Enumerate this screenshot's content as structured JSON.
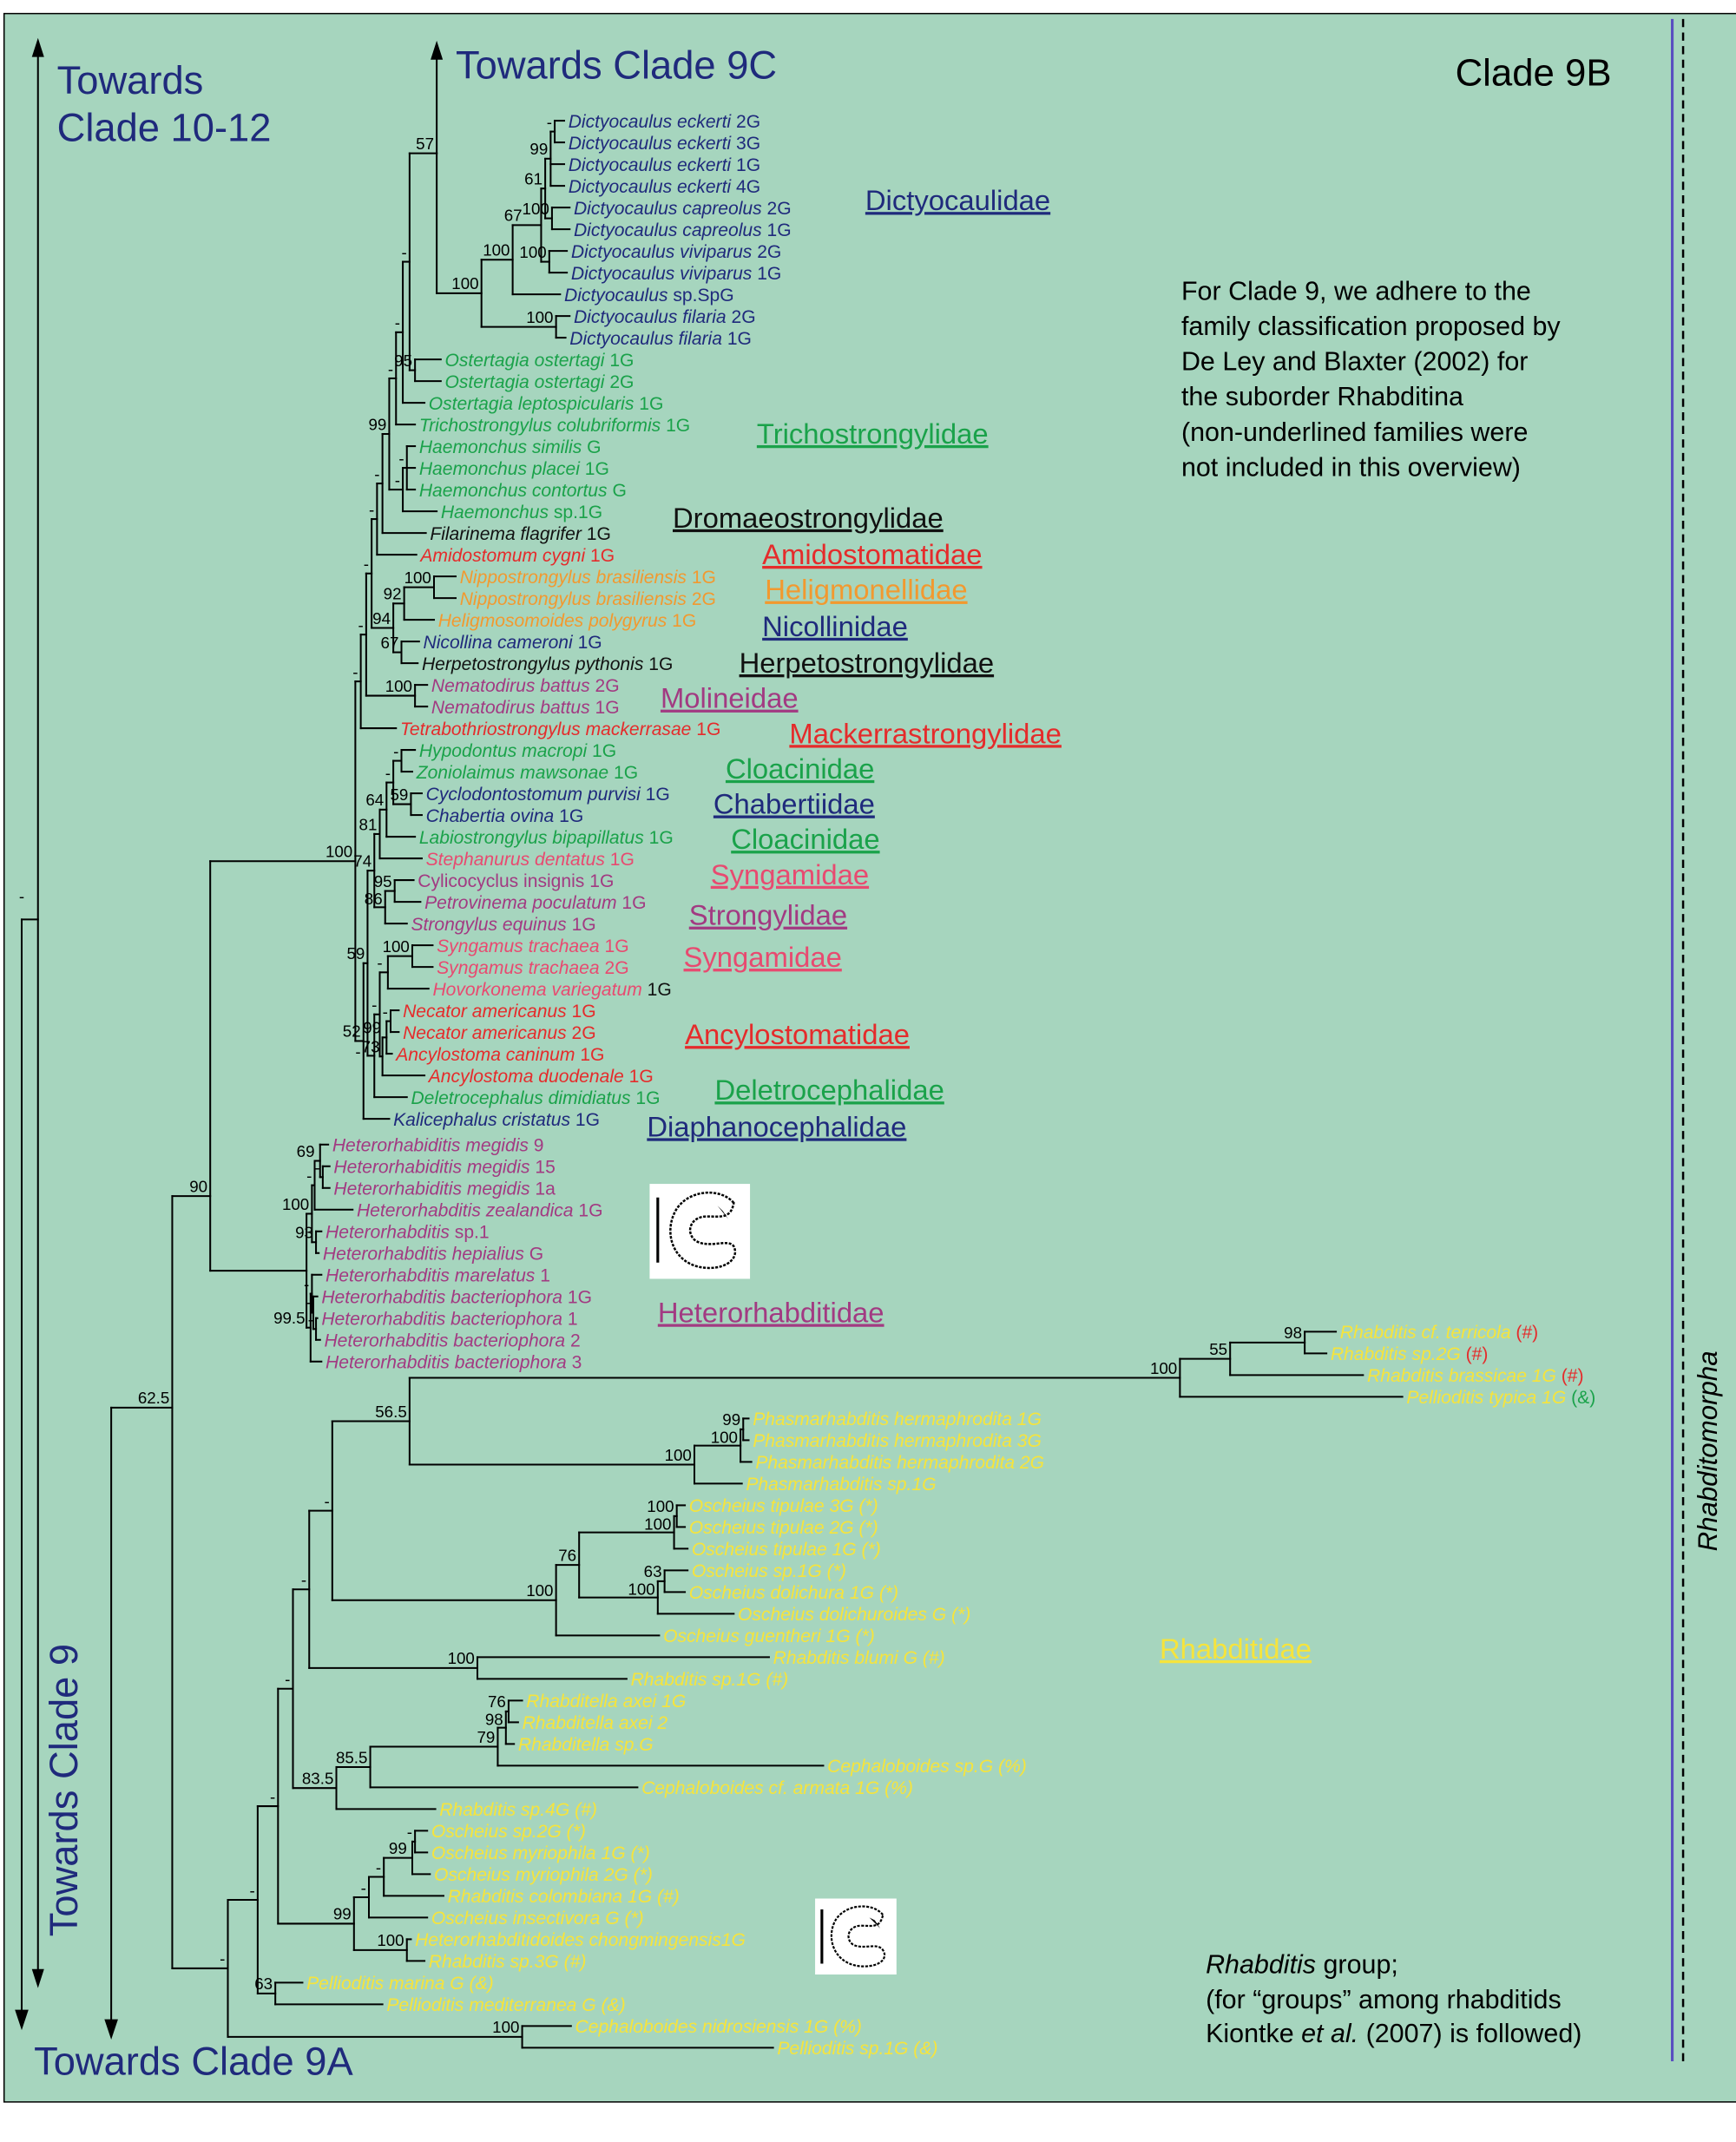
{
  "header": {
    "clade_label": "Clade 9B"
  },
  "arrows": {
    "clade_10_12_line1": "Towards",
    "clade_10_12_line2": "Clade 10-12",
    "clade_9c": "Towards Clade 9C",
    "clade_9": "Towards Clade 9",
    "clade_9a": "Towards Clade 9A"
  },
  "notes": {
    "classification": [
      "For Clade 9, we adhere to the",
      "family classification proposed by",
      "De Ley and Blaxter (2002) for",
      "the suborder Rhabditina",
      "(non-underlined families were",
      "not included in this overview)"
    ],
    "rhabditis_group": {
      "line1_italic": "Rhabditis",
      "line1_rest": " group;",
      "line2": "(for “groups” among rhabditids",
      "line3_a": "Kiontke ",
      "line3_italic": "et al.",
      "line3_b": " (2007) is followed)"
    }
  },
  "side_label": "Rhabditomorpha",
  "colors": {
    "background": "#a6d5be",
    "navy": "#1f2a7c",
    "green": "#1aa24a",
    "red": "#e52b2b",
    "orange": "#f2992f",
    "purple": "#a23a82",
    "pink": "#e84a70",
    "yellow": "#f6e43c",
    "black": "#111111",
    "rhabditomorpha_line": "#5a4fc0"
  },
  "families": [
    {
      "name": "Dictyocaulidae",
      "c": "navy"
    },
    {
      "name": "Trichostrongylidae",
      "c": "green"
    },
    {
      "name": "Dromaeostrongylidae",
      "c": "black"
    },
    {
      "name": "Amidostomatidae",
      "c": "red"
    },
    {
      "name": "Heligmonellidae",
      "c": "orange"
    },
    {
      "name": "Nicollinidae",
      "c": "navy"
    },
    {
      "name": "Herpetostrongylidae",
      "c": "black"
    },
    {
      "name": "Molineidae",
      "c": "purple"
    },
    {
      "name": "Mackerrastrongylidae",
      "c": "red"
    },
    {
      "name": "Cloacinidae",
      "c": "green"
    },
    {
      "name": "Chabertiidae",
      "c": "navy"
    },
    {
      "name": "Cloacinidae",
      "c": "green"
    },
    {
      "name": "Syngamidae",
      "c": "pink"
    },
    {
      "name": "Strongylidae",
      "c": "purple"
    },
    {
      "name": "Syngamidae",
      "c": "pink"
    },
    {
      "name": "Ancylostomatidae",
      "c": "red"
    },
    {
      "name": "Deletrocephalidae",
      "c": "green"
    },
    {
      "name": "Diaphanocephalidae",
      "c": "navy"
    },
    {
      "name": "Heterorhabditidae",
      "c": "purple"
    },
    {
      "name": "Rhabditidae",
      "c": "yellow"
    }
  ],
  "root_support": "-",
  "taxa": [
    {
      "n": "Dictyocaulus eckerti",
      "s": "2G",
      "c": "navy"
    },
    {
      "n": "Dictyocaulus eckerti",
      "s": "3G",
      "c": "navy"
    },
    {
      "n": "Dictyocaulus eckerti",
      "s": "1G",
      "c": "navy"
    },
    {
      "n": "Dictyocaulus eckerti",
      "s": "4G",
      "c": "navy"
    },
    {
      "n": "Dictyocaulus capreolus",
      "s": "2G",
      "c": "navy"
    },
    {
      "n": "Dictyocaulus capreolus",
      "s": "1G",
      "c": "navy"
    },
    {
      "n": "Dictyocaulus viviparus",
      "s": "2G",
      "c": "navy"
    },
    {
      "n": "Dictyocaulus viviparus",
      "s": "1G",
      "c": "navy"
    },
    {
      "n": "Dictyocaulus",
      "s": "sp.SpG",
      "c": "navy"
    },
    {
      "n": "Dictyocaulus filaria",
      "s": "2G",
      "c": "navy"
    },
    {
      "n": "Dictyocaulus filaria",
      "s": "1G",
      "c": "navy"
    },
    {
      "n": "Ostertagia ostertagi",
      "s": "1G",
      "c": "green"
    },
    {
      "n": "Ostertagia ostertagi",
      "s": "2G",
      "c": "green"
    },
    {
      "n": "Ostertagia leptospicularis",
      "s": "1G",
      "c": "green"
    },
    {
      "n": "Trichostrongylus colubriformis",
      "s": "1G",
      "c": "green"
    },
    {
      "n": "Haemonchus similis",
      "s": "G",
      "c": "green"
    },
    {
      "n": "Haemonchus placei",
      "s": "1G",
      "c": "green"
    },
    {
      "n": "Haemonchus contortus",
      "s": "G",
      "c": "green"
    },
    {
      "n": "Haemonchus",
      "s": "sp.1G",
      "c": "green"
    },
    {
      "n": "Filarinema flagrifer",
      "s": "1G",
      "c": "black"
    },
    {
      "n": "Amidostomum cygni",
      "s": "1G",
      "c": "red"
    },
    {
      "n": "Nippostrongylus brasiliensis",
      "s": "1G",
      "c": "orange"
    },
    {
      "n": "Nippostrongylus brasiliensis",
      "s": "2G",
      "c": "orange"
    },
    {
      "n": "Heligmosomoides polygyrus",
      "s": "1G",
      "c": "orange"
    },
    {
      "n": "Nicollina cameroni",
      "s": "1G",
      "c": "navy"
    },
    {
      "n": "Herpetostrongylus pythonis",
      "s": "1G",
      "c": "black"
    },
    {
      "n": "Nematodirus battus",
      "s": "2G",
      "c": "purple"
    },
    {
      "n": "Nematodirus battus",
      "s": "1G",
      "c": "purple"
    },
    {
      "n": "Tetrabothriostrongylus mackerrasae",
      "s": "1G",
      "c": "red"
    },
    {
      "n": "Hypodontus macropi",
      "s": "1G",
      "c": "green"
    },
    {
      "n": "Zoniolaimus mawsonae",
      "s": "1G",
      "c": "green"
    },
    {
      "n": "Cyclodontostomum purvisi",
      "s": "1G",
      "c": "navy"
    },
    {
      "n": "Chabertia ovina",
      "s": "1G",
      "c": "navy"
    },
    {
      "n": "Labiostrongylus bipapillatus",
      "s": "1G",
      "c": "green"
    },
    {
      "n": "Stephanurus dentatus",
      "s": "1G",
      "c": "pink"
    },
    {
      "n": "Cylicocyclus insignis",
      "s": "1G",
      "c": "purple",
      "it": false
    },
    {
      "n": "Petrovinema poculatum",
      "s": "1G",
      "c": "purple"
    },
    {
      "n": "Strongylus equinus",
      "s": "1G",
      "c": "purple"
    },
    {
      "n": "Syngamus trachaea",
      "s": "1G",
      "c": "pink"
    },
    {
      "n": "Syngamus trachaea",
      "s": "2G",
      "c": "pink"
    },
    {
      "n": "Hovorkonema variegatum",
      "s": "1G",
      "c": "pink",
      "sc": "black"
    },
    {
      "n": "Necator americanus",
      "s": "1G",
      "c": "red"
    },
    {
      "n": "Necator americanus",
      "s": "2G",
      "c": "red"
    },
    {
      "n": "Ancylostoma caninum",
      "s": "1G",
      "c": "red"
    },
    {
      "n": "Ancylostoma duodenale",
      "s": "1G",
      "c": "red"
    },
    {
      "n": "Deletrocephalus dimidiatus",
      "s": "1G",
      "c": "green"
    },
    {
      "n": "Kalicephalus cristatus",
      "s": "1G",
      "c": "navy"
    },
    {
      "n": "Heterorhabiditis megidis",
      "s": "9",
      "c": "purple"
    },
    {
      "n": "Heterorhabiditis megidis",
      "s": "15",
      "c": "purple"
    },
    {
      "n": "Heterorhabiditis megidis",
      "s": "1a",
      "c": "purple"
    },
    {
      "n": "Heterorhabditis zealandica",
      "s": "1G",
      "c": "purple"
    },
    {
      "n": "Heterorhabditis",
      "s": "sp.1",
      "c": "purple"
    },
    {
      "n": "Heterorhabditis hepialius",
      "s": "G",
      "c": "purple"
    },
    {
      "n": "Heterorhabditis marelatus",
      "s": "1",
      "c": "purple"
    },
    {
      "n": "Heterorhabditis bacteriophora",
      "s": "1G",
      "c": "purple"
    },
    {
      "n": "Heterorhabditis bacteriophora",
      "s": "1",
      "c": "purple"
    },
    {
      "n": "Heterorhabditis bacteriophora",
      "s": "2",
      "c": "purple"
    },
    {
      "n": "Heterorhabditis bacteriophora",
      "s": "3",
      "c": "purple"
    },
    {
      "n": "Rhabditis cf. terricola",
      "s": "",
      "c": "yellow",
      "m": "(#)",
      "mc": "red"
    },
    {
      "n": "Rhabditis sp.2G",
      "s": "",
      "c": "yellow",
      "m": "(#)",
      "mc": "red"
    },
    {
      "n": "Rhabditis brassicae 1G",
      "s": "",
      "c": "yellow",
      "m": "(#)",
      "mc": "red"
    },
    {
      "n": "Pellioditis typica 1G",
      "s": "",
      "c": "yellow",
      "m": "(&)",
      "mc": "green"
    },
    {
      "n": "Phasmarhabditis hermaphrodita 1G",
      "s": "",
      "c": "yellow"
    },
    {
      "n": "Phasmarhabditis hermaphrodita 3G",
      "s": "",
      "c": "yellow"
    },
    {
      "n": "Phasmarhabditis hermaphrodita 2G",
      "s": "",
      "c": "yellow"
    },
    {
      "n": "Phasmarhabditis sp.1G",
      "s": "",
      "c": "yellow"
    },
    {
      "n": "Oscheius tipulae 3G (*)",
      "s": "",
      "c": "yellow"
    },
    {
      "n": "Oscheius tipulae 2G (*)",
      "s": "",
      "c": "yellow"
    },
    {
      "n": "Oscheius tipulae 1G (*)",
      "s": "",
      "c": "yellow"
    },
    {
      "n": "Oscheius sp.1G (*)",
      "s": "",
      "c": "yellow"
    },
    {
      "n": "Oscheius dolichura 1G (*)",
      "s": "",
      "c": "yellow"
    },
    {
      "n": "Oscheius dolichuroides G (*)",
      "s": "",
      "c": "yellow"
    },
    {
      "n": "Oscheius guentheri 1G (*)",
      "s": "",
      "c": "yellow"
    },
    {
      "n": "Rhabditis blumi G (#)",
      "s": "",
      "c": "yellow"
    },
    {
      "n": "Rhabditis sp.1G (#)",
      "s": "",
      "c": "yellow"
    },
    {
      "n": "Rhabditella axei 1G",
      "s": "",
      "c": "yellow"
    },
    {
      "n": "Rhabditella axei 2",
      "s": "",
      "c": "yellow"
    },
    {
      "n": "Rhabditella sp.G",
      "s": "",
      "c": "yellow"
    },
    {
      "n": "Cephaloboides sp.G (%)",
      "s": "",
      "c": "yellow"
    },
    {
      "n": "Cephaloboides cf. armata 1G (%)",
      "s": "",
      "c": "yellow"
    },
    {
      "n": "Rhabditis sp.4G (#)",
      "s": "",
      "c": "yellow"
    },
    {
      "n": "Oscheius sp.2G (*)",
      "s": "",
      "c": "yellow"
    },
    {
      "n": "Oscheius myriophila 1G (*)",
      "s": "",
      "c": "yellow"
    },
    {
      "n": "Oscheius myriophila 2G (*)",
      "s": "",
      "c": "yellow"
    },
    {
      "n": "Rhabditis colombiana 1G (#)",
      "s": "",
      "c": "yellow"
    },
    {
      "n": "Oscheius insectivora G (*)",
      "s": "",
      "c": "yellow"
    },
    {
      "n": "Heterorhabditidoides chongmingensis1G",
      "s": "",
      "c": "yellow"
    },
    {
      "n": "Rhabditis sp.3G (#)",
      "s": "",
      "c": "yellow"
    },
    {
      "n": "Pellioditis marina G (&)",
      "s": "",
      "c": "yellow"
    },
    {
      "n": "Pellioditis mediterranea G (&)",
      "s": "",
      "c": "yellow"
    },
    {
      "n": "Cephaloboides nidrosiensis 1G (%)",
      "s": "",
      "c": "yellow"
    },
    {
      "n": "Pellioditis sp.1G (&)",
      "s": "",
      "c": "yellow"
    }
  ],
  "support": {
    "n62": "62.5",
    "n90": "90",
    "s100": "100",
    "d57": "57",
    "d100a": "100",
    "d100b": "100",
    "d67": "67",
    "d61": "61",
    "d99": "99",
    "dm1": "-",
    "dcap": "100",
    "dviv": "100",
    "dfil": "100",
    "ost": "95",
    "u1": "-",
    "u2": "-",
    "u3": "-",
    "u4": "99",
    "u5": "-",
    "u6": "-",
    "u7": "-",
    "u8": "-",
    "u9": "-",
    "hae": "-",
    "hae2": "-",
    "hel94": "94",
    "hel92": "92",
    "nip": "100",
    "n67": "67",
    "nem": "100",
    "l52": "52",
    "l59": "59",
    "l74": "74",
    "l81": "81",
    "l64": "64",
    "lcl": "-",
    "lhz": "-",
    "lch": "59",
    "l86": "86",
    "l95": "95",
    "lsa": "-",
    "lsb": "-",
    "lsg": "-",
    "syn": "100",
    "l73": "73",
    "l99": "99",
    "nec": "-",
    "h100": "100",
    "h1": "-",
    "h69": "69",
    "hm": "-",
    "h93": "93",
    "h995": "99.5",
    "hb1": "-",
    "hb2": "-",
    "hb3": "-",
    "r100": "100",
    "r55": "55",
    "r98": "98",
    "p100": "100",
    "p100b": "100",
    "p99": "99",
    "r565": "56.5",
    "o100": "100",
    "o76": "76",
    "ot": "100",
    "ot2": "100",
    "od": "100",
    "o63": "63",
    "r1": "-",
    "rb": "100",
    "r2": "-",
    "r79": "79",
    "r98b": "98",
    "r76": "76",
    "r855": "85.5",
    "r835": "83.5",
    "r3": "-",
    "o99": "99",
    "oa": "-",
    "ob": "-",
    "o99b": "99",
    "oc": "-",
    "o100b": "100",
    "r4": "-",
    "p63": "63",
    "r5": "-",
    "c100": "100",
    "r6": "-"
  }
}
